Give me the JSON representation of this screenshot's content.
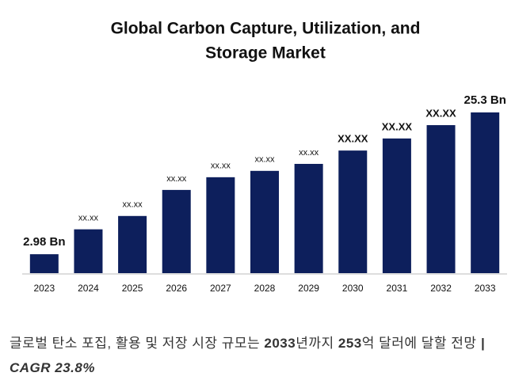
{
  "chart_data": {
    "type": "bar",
    "title": "Global Carbon Capture, Utilization, and",
    "title_line2": "Storage Market",
    "categories": [
      "2023",
      "2024",
      "2025",
      "2026",
      "2027",
      "2028",
      "2029",
      "2030",
      "2031",
      "2032",
      "2033"
    ],
    "values": [
      2.98,
      6.9,
      9.0,
      13.1,
      15.1,
      16.1,
      17.2,
      19.3,
      21.2,
      23.3,
      25.3
    ],
    "value_labels": [
      "2.98 Bn",
      "xx.xx",
      "xx.xx",
      "xx.xx",
      "xx.xx",
      "xx.xx",
      "xx.xx",
      "XX.XX",
      "XX.XX",
      "XX.XX",
      "25.3 Bn"
    ],
    "color": "#0d1f5c"
  },
  "caption": [
    "글로벌 탄소 포집, 활용 및 저장 시장 규모는 ",
    "2033",
    "년까지 ",
    "253",
    "억 달러에 달할 전망 ",
    "| CAGR 23.8%"
  ]
}
